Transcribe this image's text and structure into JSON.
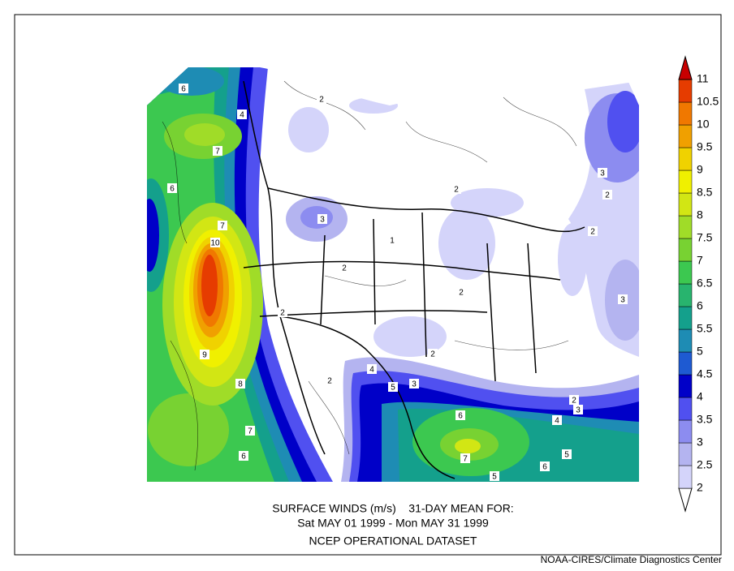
{
  "frame": {
    "title_lines": [
      "SURFACE WINDS (m/s)    31-DAY MEAN FOR:",
      "Sat MAY 01 1999 - Mon MAY 31 1999",
      "NCEP OPERATIONAL DATASET"
    ],
    "credit": "NOAA-CIRES/Climate Diagnostics Center"
  },
  "colorbar": {
    "levels": [
      2,
      2.5,
      3,
      3.5,
      4,
      4.5,
      5,
      5.5,
      6,
      6.5,
      7,
      7.5,
      8,
      8.5,
      9,
      9.5,
      10,
      10.5,
      11
    ],
    "colors": [
      "#ffffff",
      "#d4d4fa",
      "#b4b4f0",
      "#8c8cf0",
      "#5050f0",
      "#0000c8",
      "#1e5ad2",
      "#1e8cb4",
      "#14a08c",
      "#28b46e",
      "#3cc850",
      "#78d232",
      "#a0dc28",
      "#d2e614",
      "#f0f000",
      "#f0d200",
      "#f0a000",
      "#f07800",
      "#e63c00",
      "#c80000"
    ]
  },
  "contour_labels": [
    6,
    4,
    7,
    6,
    3,
    2,
    3,
    2,
    2,
    1,
    2,
    7,
    10,
    9,
    8,
    7,
    6,
    2,
    2,
    2,
    4,
    5,
    3,
    2,
    3,
    2,
    6,
    7,
    5,
    6,
    4,
    5,
    2,
    3
  ]
}
